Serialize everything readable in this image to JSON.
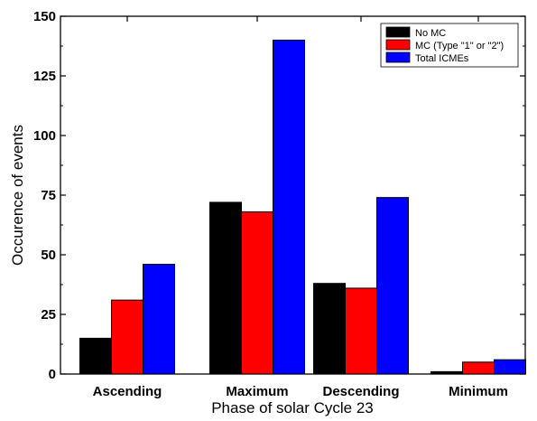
{
  "chart_data": {
    "type": "bar",
    "title": "",
    "xlabel": "Phase of solar Cycle 23",
    "ylabel": "Occurence of events",
    "categories": [
      "Ascending",
      "Maximum",
      "Descending",
      "Minimum"
    ],
    "ylim": [
      0,
      150
    ],
    "yticks": [
      "0",
      "25",
      "50",
      "75",
      "100",
      "125",
      "150"
    ],
    "legend_position": "top-right",
    "grid": false,
    "series": [
      {
        "name": "No MC",
        "color": "#000000",
        "values": [
          15,
          72,
          38,
          1
        ]
      },
      {
        "name": "MC (Type \"1\" or \"2\")",
        "color": "#ff0000",
        "values": [
          31,
          68,
          36,
          5
        ]
      },
      {
        "name": "Total ICMEs",
        "color": "#0000ff",
        "values": [
          46,
          140,
          74,
          6
        ]
      }
    ]
  }
}
